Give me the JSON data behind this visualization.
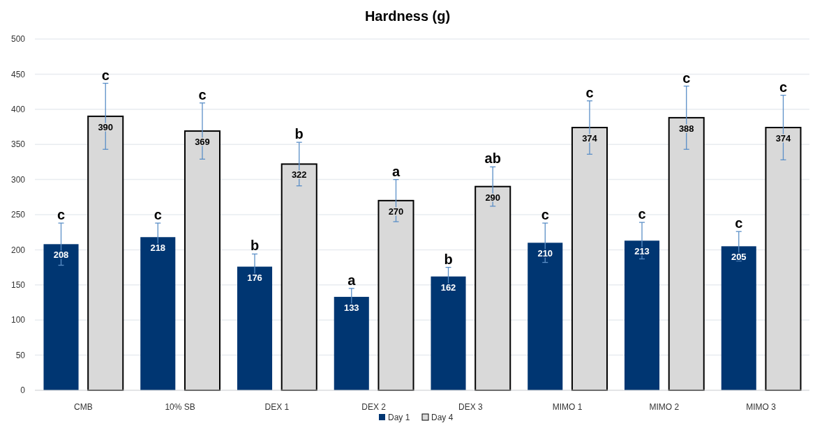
{
  "chart_data": {
    "type": "bar",
    "title": "Hardness (g)",
    "categories": [
      "CMB",
      "10% SB",
      "DEX 1",
      "DEX 2",
      "DEX 3",
      "MIMO 1",
      "MIMO 2",
      "MIMO 3"
    ],
    "series": [
      {
        "name": "Day 1",
        "color": "#003672",
        "values": [
          208,
          218,
          176,
          133,
          162,
          210,
          213,
          205
        ],
        "errors": [
          30,
          20,
          18,
          12,
          13,
          28,
          26,
          21
        ]
      },
      {
        "name": "Day 4",
        "color": "#d9d9d9",
        "values": [
          390,
          369,
          322,
          270,
          290,
          374,
          388,
          374
        ],
        "errors": [
          47,
          40,
          31,
          30,
          28,
          38,
          45,
          46
        ]
      }
    ],
    "ylim": [
      0,
      500
    ],
    "yticks": [
      0,
      50,
      100,
      150,
      200,
      250,
      300,
      350,
      400,
      450,
      500
    ],
    "grid": "y",
    "legend": "bottom",
    "data_labels": true,
    "annotations": [
      "c",
      "c",
      "c",
      "c",
      "b",
      "b",
      "a",
      "a",
      "b",
      "ab",
      "c",
      "c",
      "c",
      "c",
      "c",
      "c"
    ]
  }
}
